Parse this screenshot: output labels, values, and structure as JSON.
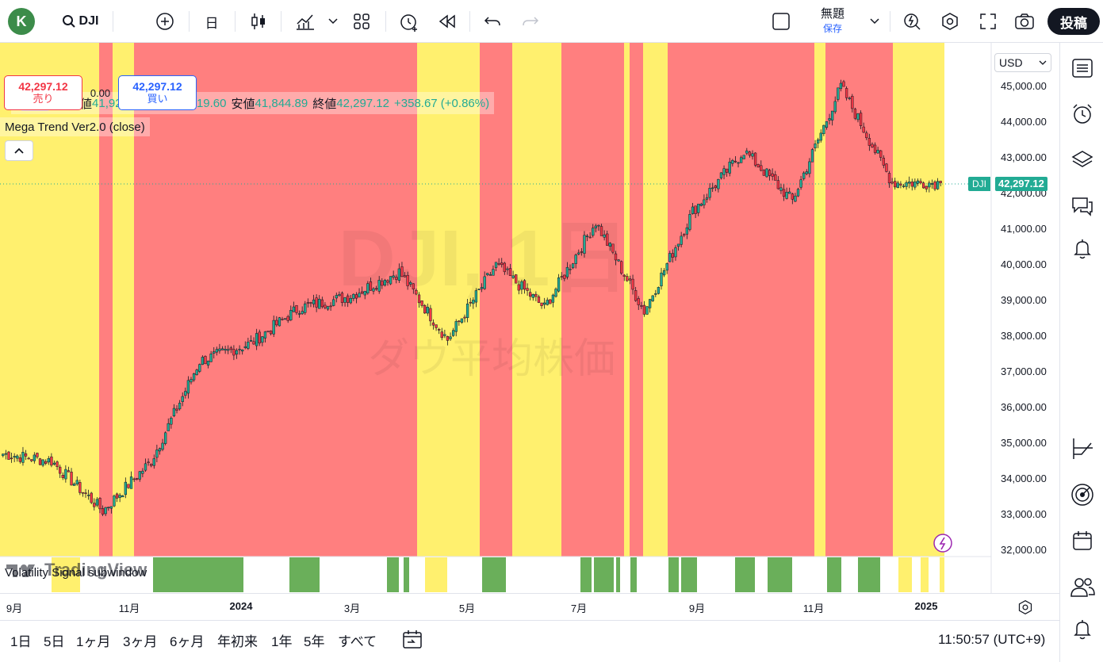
{
  "topbar": {
    "avatar_letter": "K",
    "symbol": "DJI",
    "interval": "日",
    "layout_name": "無題",
    "save_label": "保存",
    "post_label": "投稿"
  },
  "legend": {
    "open_label": "始値",
    "open": "41,924.68",
    "high_label": "高値",
    "high": "42,319.60",
    "low_label": "安値",
    "low": "41,844.89",
    "close_label": "終値",
    "close": "42,297.12",
    "change": "+358.67 (+0.86%)"
  },
  "trade": {
    "sell_price": "42,297.12",
    "sell_label": "売り",
    "spread": "0.00",
    "buy_price": "42,297.12",
    "buy_label": "買い"
  },
  "indicator_label": "Mega Trend Ver2.0 (close)",
  "subwindow_label": "Volatility Signal subwindow",
  "watermark": {
    "line1": "DJI, 1日",
    "line2": "ダウ平均株価"
  },
  "brand": "TradingView",
  "price_axis": {
    "currency": "USD",
    "labels": [
      "45,000.00",
      "44,000.00",
      "43,000.00",
      "42,000.00",
      "41,000.00",
      "40,000.00",
      "39,000.00",
      "38,000.00",
      "37,000.00",
      "36,000.00",
      "35,000.00",
      "34,000.00",
      "33,000.00",
      "32,000.00"
    ],
    "last_symbol": "DJI",
    "last_price": "42,297.12"
  },
  "time_axis": [
    {
      "label": "9月",
      "bold": false
    },
    {
      "label": "11月",
      "bold": false
    },
    {
      "label": "2024",
      "bold": true
    },
    {
      "label": "3月",
      "bold": false
    },
    {
      "label": "5月",
      "bold": false
    },
    {
      "label": "7月",
      "bold": false
    },
    {
      "label": "9月",
      "bold": false
    },
    {
      "label": "11月",
      "bold": false
    },
    {
      "label": "2025",
      "bold": true
    }
  ],
  "ranges": [
    "1日",
    "5日",
    "1ヶ月",
    "3ヶ月",
    "6ヶ月",
    "年初来",
    "1年",
    "5年",
    "すべて"
  ],
  "clock": "11:50:57 (UTC+9)",
  "colors": {
    "red_zone": "#ff7f7f",
    "yellow_zone": "#fff06e",
    "up": "#22ab94",
    "down": "#f23645",
    "signal": "#6aaf5a"
  },
  "chart_data": {
    "type": "candlestick",
    "symbol": "DJI",
    "interval": "1D",
    "ylim": [
      32000,
      45000
    ],
    "x_ticks": [
      "9月",
      "11月",
      "2024",
      "3月",
      "5月",
      "7月",
      "9月",
      "11月",
      "2025"
    ],
    "approx_close_path": [
      {
        "t": "2023-08",
        "v": 34700
      },
      {
        "t": "2023-09",
        "v": 34500
      },
      {
        "t": "2023-10",
        "v": 33100
      },
      {
        "t": "2023-11",
        "v": 34500
      },
      {
        "t": "2023-12",
        "v": 37300
      },
      {
        "t": "2024-01",
        "v": 37800
      },
      {
        "t": "2024-02",
        "v": 38800
      },
      {
        "t": "2024-03",
        "v": 39100
      },
      {
        "t": "2024-03-28",
        "v": 39800
      },
      {
        "t": "2024-04-19",
        "v": 37900
      },
      {
        "t": "2024-05-17",
        "v": 40000
      },
      {
        "t": "2024-06",
        "v": 38800
      },
      {
        "t": "2024-07-17",
        "v": 41200
      },
      {
        "t": "2024-08-05",
        "v": 38700
      },
      {
        "t": "2024-08-30",
        "v": 41500
      },
      {
        "t": "2024-10",
        "v": 43200
      },
      {
        "t": "2024-11-01",
        "v": 41800
      },
      {
        "t": "2024-12-04",
        "v": 45000
      },
      {
        "t": "2024-12-20",
        "v": 42300
      },
      {
        "t": "2025-01",
        "v": 42297.12
      }
    ],
    "last": {
      "open": 41924.68,
      "high": 42319.6,
      "low": 41844.89,
      "close": 42297.12,
      "change": 358.67,
      "change_pct": 0.86
    }
  }
}
